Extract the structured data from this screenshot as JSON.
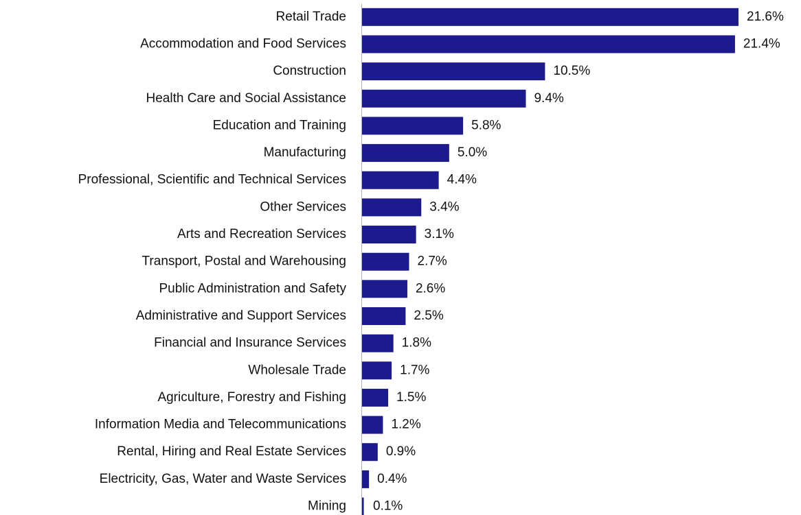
{
  "chart_data": {
    "type": "bar",
    "orientation": "horizontal",
    "color": "#1c1a8c",
    "categories": [
      "Retail Trade",
      "Accommodation and Food Services",
      "Construction",
      "Health Care and Social Assistance",
      "Education and Training",
      "Manufacturing",
      "Professional, Scientific and Technical Services",
      "Other Services",
      "Arts and Recreation Services",
      "Transport, Postal and Warehousing",
      "Public Administration and Safety",
      "Administrative and Support Services",
      "Financial and Insurance Services",
      "Wholesale Trade",
      "Agriculture, Forestry and Fishing",
      "Information Media and Telecommunications",
      "Rental, Hiring and Real Estate Services",
      "Electricity, Gas, Water and Waste Services",
      "Mining"
    ],
    "values": [
      21.6,
      21.4,
      10.5,
      9.4,
      5.8,
      5.0,
      4.4,
      3.4,
      3.1,
      2.7,
      2.6,
      2.5,
      1.8,
      1.7,
      1.5,
      1.2,
      0.9,
      0.4,
      0.1
    ],
    "value_labels": [
      "21.6%",
      "21.4%",
      "10.5%",
      "9.4%",
      "5.8%",
      "5.0%",
      "4.4%",
      "3.4%",
      "3.1%",
      "2.7%",
      "2.6%",
      "2.5%",
      "1.8%",
      "1.7%",
      "1.5%",
      "1.2%",
      "0.9%",
      "0.4%",
      "0.1%"
    ]
  }
}
